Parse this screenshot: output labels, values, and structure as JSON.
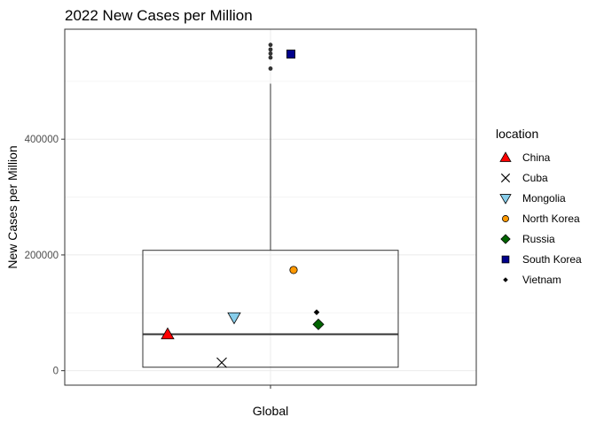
{
  "chart_data": {
    "type": "boxplot",
    "title": "2022 New Cases per Million",
    "xlabel": "",
    "ylabel": "New Cases per Million",
    "categories": [
      "Global"
    ],
    "ylim": [
      -25000,
      590000
    ],
    "yticks": [
      0,
      200000,
      400000
    ],
    "ytick_labels": [
      "0",
      "200000",
      "400000"
    ],
    "grid": true,
    "box": {
      "category": "Global",
      "q1": 6000,
      "median": 63000,
      "q3": 208000,
      "whisker_low": 6000,
      "whisker_high": 496000,
      "outliers": [
        522000,
        541000,
        548000,
        555000,
        563000
      ]
    },
    "legend_title": "location",
    "legend_position": "right",
    "series": [
      {
        "name": "China",
        "value": 63000,
        "shape": "triangle-up",
        "color": "#ff0000"
      },
      {
        "name": "Cuba",
        "value": 14000,
        "shape": "cross",
        "color": "#000000"
      },
      {
        "name": "Mongolia",
        "value": 92000,
        "shape": "triangle-down",
        "color": "#87ceeb"
      },
      {
        "name": "North Korea",
        "value": 174000,
        "shape": "circle",
        "color": "#ff9900"
      },
      {
        "name": "Russia",
        "value": 80000,
        "shape": "diamond",
        "color": "#006400"
      },
      {
        "name": "South Korea",
        "value": 547000,
        "shape": "square",
        "color": "#00008b"
      },
      {
        "name": "Vietnam",
        "value": 101000,
        "shape": "small-diamond",
        "color": "#000000"
      }
    ]
  }
}
